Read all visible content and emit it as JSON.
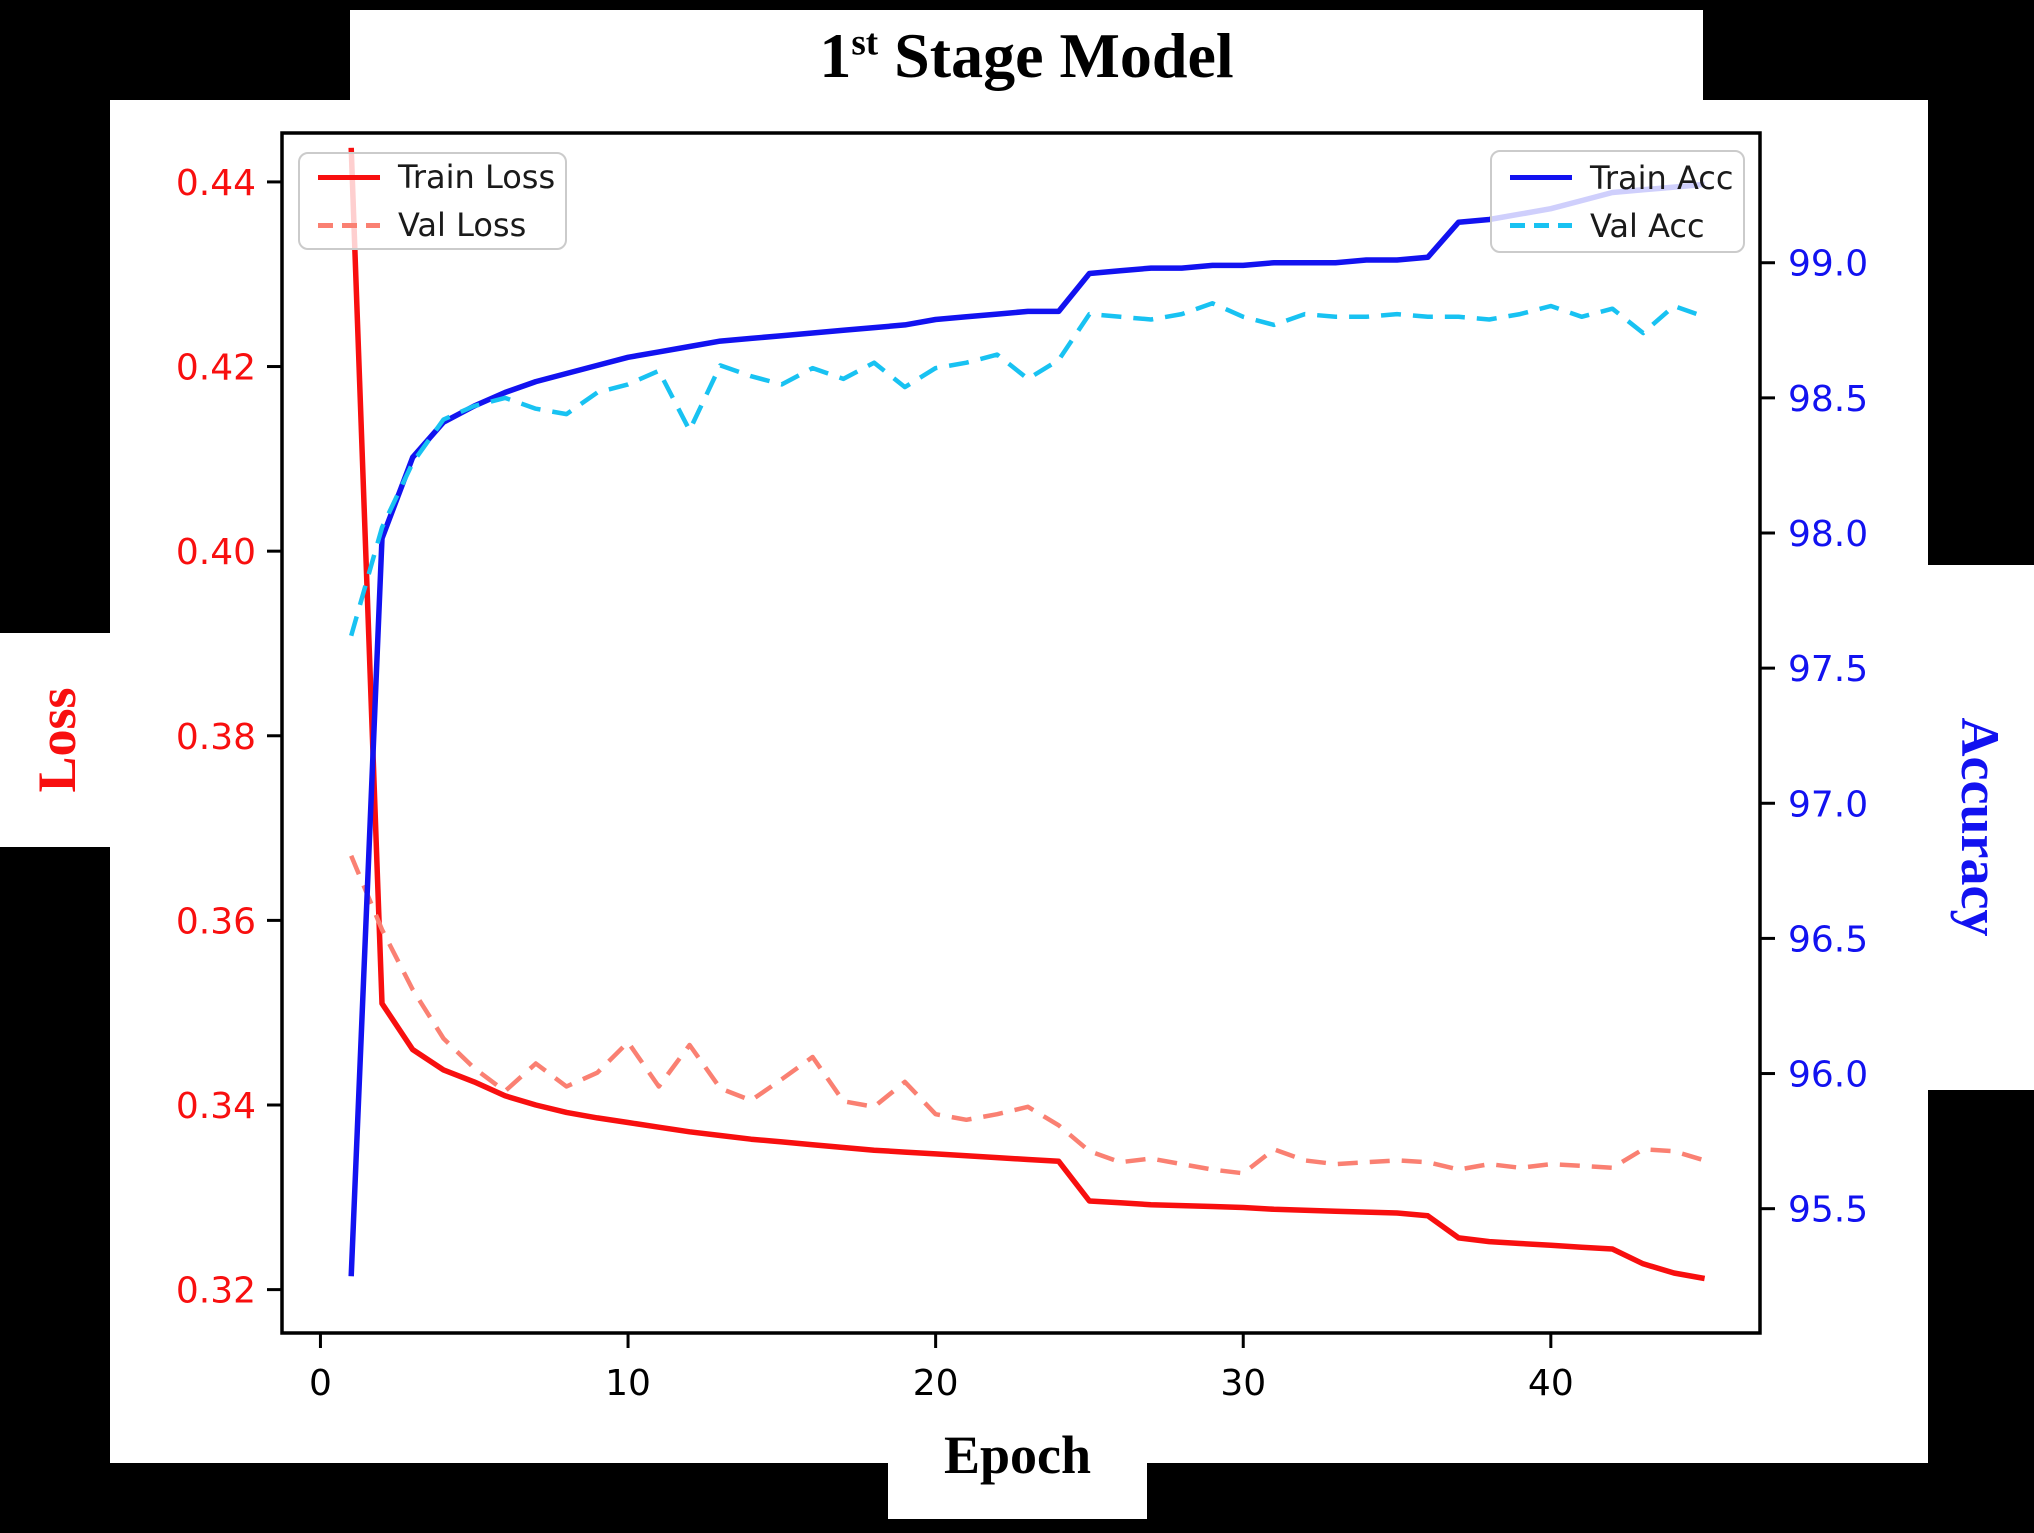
{
  "title": {
    "number": "1",
    "superscript": "st",
    "rest": " Stage Model"
  },
  "chart_data": {
    "type": "line",
    "title": "1st Stage Model",
    "xlabel": "Epoch",
    "ylabel_left": "Loss",
    "ylabel_right": "Accuracy",
    "xlim": [
      -1.25,
      46.8
    ],
    "ylim_left": [
      0.3153,
      0.4453
    ],
    "ylim_right": [
      95.04,
      99.48
    ],
    "xticks": [
      0,
      10,
      20,
      30,
      40
    ],
    "yticks_left": [
      0.32,
      0.34,
      0.36,
      0.38,
      0.4,
      0.42,
      0.44
    ],
    "yticks_right": [
      95.5,
      96.0,
      96.5,
      97.0,
      97.5,
      98.0,
      98.5,
      99.0
    ],
    "tick_colors": {
      "x": "#000000",
      "left": "#f80f0f",
      "right": "#1212f0"
    },
    "legend_position": {
      "loss": "upper left",
      "acc": "upper right"
    },
    "grid": false,
    "epochs": [
      1,
      2,
      3,
      4,
      5,
      6,
      7,
      8,
      9,
      10,
      11,
      12,
      13,
      14,
      15,
      16,
      17,
      18,
      19,
      20,
      21,
      22,
      23,
      24,
      25,
      26,
      27,
      28,
      29,
      30,
      31,
      32,
      33,
      34,
      35,
      36,
      37,
      38,
      39,
      40,
      41,
      42,
      43,
      44,
      45
    ],
    "series": [
      {
        "name": "Train Loss",
        "axis": "left",
        "style": "solid",
        "color": "#f80f0f",
        "values": [
          0.4437,
          0.351,
          0.346,
          0.3438,
          0.3425,
          0.341,
          0.34,
          0.3392,
          0.3386,
          0.3381,
          0.3376,
          0.3371,
          0.3367,
          0.3363,
          0.336,
          0.3357,
          0.3354,
          0.3351,
          0.3349,
          0.3347,
          0.3345,
          0.3343,
          0.3341,
          0.3339,
          0.3296,
          0.3294,
          0.3292,
          0.3291,
          0.329,
          0.3289,
          0.3287,
          0.3286,
          0.3285,
          0.3284,
          0.3283,
          0.328,
          0.3256,
          0.3252,
          0.325,
          0.3248,
          0.3246,
          0.3244,
          0.3228,
          0.3218,
          0.3212
        ]
      },
      {
        "name": "Val Loss",
        "axis": "left",
        "style": "dashed",
        "color": "#fa8072",
        "values": [
          0.367,
          0.359,
          0.3525,
          0.3472,
          0.344,
          0.3415,
          0.3445,
          0.342,
          0.3435,
          0.3468,
          0.342,
          0.3465,
          0.3418,
          0.3405,
          0.3428,
          0.3452,
          0.3404,
          0.3398,
          0.3425,
          0.339,
          0.3384,
          0.339,
          0.3398,
          0.3378,
          0.335,
          0.3338,
          0.3342,
          0.3336,
          0.333,
          0.3326,
          0.3352,
          0.334,
          0.3336,
          0.3338,
          0.334,
          0.3338,
          0.333,
          0.3336,
          0.3332,
          0.3336,
          0.3334,
          0.3332,
          0.3352,
          0.335,
          0.334
        ]
      },
      {
        "name": "Train Acc",
        "axis": "right",
        "style": "solid",
        "color": "#1212f0",
        "values": [
          95.25,
          97.98,
          98.28,
          98.41,
          98.47,
          98.52,
          98.56,
          98.59,
          98.62,
          98.65,
          98.67,
          98.69,
          98.71,
          98.72,
          98.73,
          98.74,
          98.75,
          98.76,
          98.77,
          98.79,
          98.8,
          98.81,
          98.82,
          98.82,
          98.96,
          98.97,
          98.98,
          98.98,
          98.99,
          98.99,
          99.0,
          99.0,
          99.0,
          99.01,
          99.01,
          99.02,
          99.15,
          99.16,
          99.18,
          99.2,
          99.23,
          99.26,
          99.27,
          99.28,
          99.29
        ]
      },
      {
        "name": "Val Acc",
        "axis": "right",
        "style": "dashed",
        "color": "#18c2f2",
        "values": [
          97.62,
          98.02,
          98.26,
          98.42,
          98.47,
          98.5,
          98.46,
          98.44,
          98.52,
          98.55,
          98.6,
          98.38,
          98.62,
          98.58,
          98.55,
          98.61,
          98.57,
          98.63,
          98.54,
          98.61,
          98.63,
          98.66,
          98.57,
          98.64,
          98.81,
          98.8,
          98.79,
          98.81,
          98.85,
          98.8,
          98.77,
          98.81,
          98.8,
          98.8,
          98.81,
          98.8,
          98.8,
          98.79,
          98.81,
          98.84,
          98.8,
          98.83,
          98.74,
          98.84,
          98.8
        ]
      }
    ]
  }
}
